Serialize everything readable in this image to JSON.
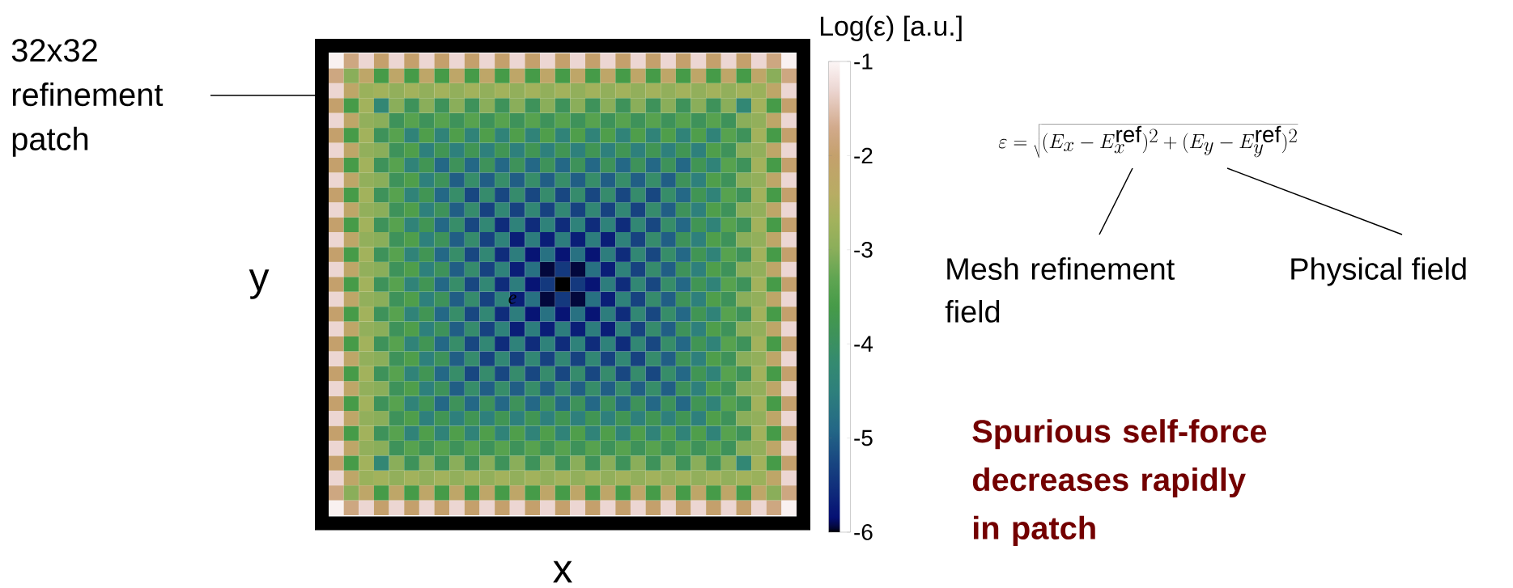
{
  "chart_data": {
    "type": "heatmap",
    "xlabel": "x",
    "ylabel": "y",
    "clabel": "Log(ε) [a.u.]",
    "categories": [
      null,
      null,
      null,
      null,
      null,
      null,
      null,
      null,
      null,
      null,
      null,
      null,
      null,
      null,
      null,
      null,
      null,
      null,
      null,
      null,
      null,
      null,
      null,
      null,
      null,
      null,
      null,
      null,
      null,
      null,
      null
    ],
    "y_categories": [
      null,
      null,
      null,
      null,
      null,
      null,
      null,
      null,
      null,
      null,
      null,
      null,
      null,
      null,
      null,
      null,
      null,
      null,
      null,
      null,
      null,
      null,
      null,
      null,
      null,
      null,
      null,
      null,
      null,
      null,
      null
    ],
    "clim": [
      -6,
      -1
    ],
    "cticks": [
      -1,
      -2,
      -3,
      -4,
      -5,
      -6
    ],
    "annotations": [
      "32x32 refinement patch",
      "\\varepsilon = \\sqrt{(E_x - E_x^{\\mathrm{ref}})^2 + (E_y - E_y^{\\mathrm{ref}})^2}",
      "Mesh refinement field",
      "Physical field",
      "Spurious self-force decreases rapidly in patch",
      "e"
    ],
    "cells": [
      [
        -1.05,
        -1.8,
        -1.3,
        -2,
        -1.3,
        -2,
        -1.3,
        -2,
        -1.3,
        -2,
        -1.3,
        -2,
        -1.3,
        -2,
        -1.3,
        -2,
        -1.3,
        -2,
        -1.3,
        -2,
        -1.3,
        -2,
        -1.3,
        -2,
        -1.3,
        -2,
        -1.3,
        -2,
        -1.3,
        -1.8,
        -1.05
      ],
      [
        -1.8,
        -3,
        -2.2,
        -3.6,
        -2.2,
        -3.6,
        -2.2,
        -3.6,
        -2.2,
        -3.6,
        -2.2,
        -3.6,
        -2.2,
        -3.6,
        -2.2,
        -3.6,
        -2.2,
        -3.6,
        -2.2,
        -3.6,
        -2.2,
        -3.6,
        -2.2,
        -3.6,
        -2.2,
        -3.6,
        -2.2,
        -3.6,
        -2.2,
        -3,
        -1.8
      ],
      [
        -1.3,
        -2.2,
        -2.8,
        -2.7,
        -2.9,
        -2.7,
        -2.9,
        -2.7,
        -2.9,
        -2.7,
        -2.9,
        -2.7,
        -2.9,
        -2.7,
        -2.9,
        -2.7,
        -2.9,
        -2.7,
        -2.9,
        -2.7,
        -2.9,
        -2.7,
        -2.9,
        -2.7,
        -2.9,
        -2.7,
        -2.9,
        -2.7,
        -2.8,
        -2.2,
        -1.3
      ],
      [
        -2,
        -3.6,
        -2.7,
        -4.3,
        -3,
        -3.9,
        -3,
        -3.9,
        -3,
        -3.9,
        -3,
        -3.9,
        -3,
        -3.9,
        -3,
        -3.9,
        -3,
        -3.9,
        -3,
        -3.9,
        -3,
        -3.9,
        -3,
        -3.9,
        -3,
        -3.9,
        -3,
        -4.3,
        -2.7,
        -3.6,
        -2
      ],
      [
        -1.3,
        -2.2,
        -2.9,
        -3,
        -3.9,
        -3.4,
        -3.9,
        -3.4,
        -3.9,
        -3.4,
        -3.9,
        -3.4,
        -3.9,
        -3.4,
        -3.9,
        -3.4,
        -3.9,
        -3.4,
        -3.9,
        -3.4,
        -3.9,
        -3.4,
        -3.9,
        -3.4,
        -3.9,
        -3.4,
        -3.9,
        -3,
        -2.9,
        -2.2,
        -1.3
      ],
      [
        -2,
        -3.6,
        -2.7,
        -3.9,
        -3.4,
        -4.4,
        -3.5,
        -4.4,
        -3.5,
        -4.4,
        -3.5,
        -4.4,
        -3.5,
        -4.4,
        -3.5,
        -4.4,
        -3.5,
        -4.4,
        -3.5,
        -4.4,
        -3.5,
        -4.4,
        -3.5,
        -4.4,
        -3.5,
        -4.4,
        -3.4,
        -3.9,
        -2.7,
        -3.6,
        -2
      ],
      [
        -1.3,
        -2.2,
        -2.9,
        -3,
        -3.9,
        -3.5,
        -4.5,
        -3.8,
        -4.5,
        -3.8,
        -4.5,
        -3.8,
        -4.5,
        -3.8,
        -4.5,
        -3.8,
        -4.5,
        -3.8,
        -4.5,
        -3.8,
        -4.5,
        -3.8,
        -4.5,
        -3.8,
        -4.5,
        -3.5,
        -3.9,
        -3,
        -2.9,
        -2.2,
        -1.3
      ],
      [
        -2,
        -3.6,
        -2.7,
        -3.9,
        -3.4,
        -4.4,
        -3.8,
        -4.9,
        -3.9,
        -4.9,
        -3.9,
        -4.9,
        -3.9,
        -4.9,
        -3.9,
        -4.9,
        -3.9,
        -4.9,
        -3.9,
        -4.9,
        -3.9,
        -4.9,
        -3.9,
        -4.9,
        -3.8,
        -4.4,
        -3.4,
        -3.9,
        -2.7,
        -3.6,
        -2
      ],
      [
        -1.3,
        -2.2,
        -2.9,
        -3,
        -3.9,
        -3.5,
        -4.5,
        -3.9,
        -5,
        -4.1,
        -5,
        -4.1,
        -5,
        -4.1,
        -5,
        -4.1,
        -5,
        -4.1,
        -5,
        -4.1,
        -5,
        -4.1,
        -5,
        -3.9,
        -4.5,
        -3.5,
        -3.9,
        -3,
        -2.9,
        -2.2,
        -1.3
      ],
      [
        -2,
        -3.6,
        -2.7,
        -3.9,
        -3.4,
        -4.4,
        -3.8,
        -4.9,
        -4.1,
        -5.25,
        -4.15,
        -5.25,
        -4.15,
        -5.25,
        -4.15,
        -5.25,
        -4.15,
        -5.25,
        -4.15,
        -5.25,
        -4.15,
        -5.25,
        -4.1,
        -4.9,
        -3.8,
        -4.4,
        -3.4,
        -3.9,
        -2.7,
        -3.6,
        -2
      ],
      [
        -1.3,
        -2.2,
        -2.9,
        -3,
        -3.9,
        -3.5,
        -4.5,
        -3.9,
        -5,
        -4.15,
        -5.3,
        -4.3,
        -5.3,
        -4.3,
        -5.3,
        -4.3,
        -5.3,
        -4.3,
        -5.3,
        -4.3,
        -5.3,
        -4.15,
        -5,
        -3.9,
        -4.5,
        -3.5,
        -3.9,
        -3,
        -2.9,
        -2.2,
        -1.3
      ],
      [
        -2,
        -3.6,
        -2.7,
        -3.9,
        -3.4,
        -4.4,
        -3.8,
        -4.9,
        -4.1,
        -5.25,
        -4.3,
        -5.55,
        -4.45,
        -5.55,
        -4.45,
        -5.55,
        -4.45,
        -5.55,
        -4.45,
        -5.55,
        -4.3,
        -5.25,
        -4.1,
        -4.9,
        -3.8,
        -4.4,
        -3.4,
        -3.9,
        -2.7,
        -3.6,
        -2
      ],
      [
        -1.3,
        -2.2,
        -2.9,
        -3,
        -3.9,
        -3.5,
        -4.5,
        -3.9,
        -5,
        -4.15,
        -5.3,
        -4.45,
        -5.7,
        -4.55,
        -5.7,
        -4.55,
        -5.7,
        -4.55,
        -5.7,
        -4.45,
        -5.3,
        -4.15,
        -5,
        -3.9,
        -4.5,
        -3.5,
        -3.9,
        -3,
        -2.9,
        -2.2,
        -1.3
      ],
      [
        -2,
        -3.6,
        -2.7,
        -3.9,
        -3.4,
        -4.4,
        -3.8,
        -4.9,
        -4.1,
        -5.25,
        -4.3,
        -5.55,
        -4.55,
        -5.8,
        -4.75,
        -5.8,
        -4.75,
        -5.8,
        -4.55,
        -5.55,
        -4.3,
        -5.25,
        -4.1,
        -4.9,
        -3.8,
        -4.4,
        -3.4,
        -3.9,
        -2.7,
        -3.6,
        -2
      ],
      [
        -1.3,
        -2.2,
        -2.9,
        -3,
        -3.9,
        -3.5,
        -4.5,
        -3.9,
        -5,
        -4.15,
        -5.3,
        -4.45,
        -5.7,
        -4.75,
        -5.95,
        -5.4,
        -5.95,
        -4.75,
        -5.7,
        -4.45,
        -5.3,
        -4.15,
        -5,
        -3.9,
        -4.5,
        -3.5,
        -3.9,
        -3,
        -2.9,
        -2.2,
        -1.3
      ],
      [
        -2,
        -3.6,
        -2.7,
        -3.9,
        -3.4,
        -4.4,
        -3.8,
        -4.9,
        -4.1,
        -5.25,
        -4.3,
        -5.55,
        -4.55,
        -5.8,
        -5.4,
        -6,
        -5.4,
        -5.8,
        -4.55,
        -5.55,
        -4.3,
        -5.25,
        -4.1,
        -4.9,
        -3.8,
        -4.4,
        -3.4,
        -3.9,
        -2.7,
        -3.6,
        -2
      ],
      [
        -1.3,
        -2.2,
        -2.9,
        -3,
        -3.9,
        -3.5,
        -4.5,
        -3.9,
        -5,
        -4.15,
        -5.3,
        -4.45,
        -5.7,
        -4.75,
        -5.95,
        -5.4,
        -5.95,
        -4.75,
        -5.7,
        -4.45,
        -5.3,
        -4.15,
        -5,
        -3.9,
        -4.5,
        -3.5,
        -3.9,
        -3,
        -2.9,
        -2.2,
        -1.3
      ],
      [
        -2,
        -3.6,
        -2.7,
        -3.9,
        -3.4,
        -4.4,
        -3.8,
        -4.9,
        -4.1,
        -5.25,
        -4.3,
        -5.55,
        -4.55,
        -5.8,
        -4.75,
        -5.8,
        -4.75,
        -5.8,
        -4.55,
        -5.55,
        -4.3,
        -5.25,
        -4.1,
        -4.9,
        -3.8,
        -4.4,
        -3.4,
        -3.9,
        -2.7,
        -3.6,
        -2
      ],
      [
        -1.3,
        -2.2,
        -2.9,
        -3,
        -3.9,
        -3.5,
        -4.5,
        -3.9,
        -5,
        -4.15,
        -5.3,
        -4.45,
        -5.7,
        -4.55,
        -5.7,
        -4.55,
        -5.7,
        -4.55,
        -5.7,
        -4.45,
        -5.3,
        -4.15,
        -5,
        -3.9,
        -4.5,
        -3.5,
        -3.9,
        -3,
        -2.9,
        -2.2,
        -1.3
      ],
      [
        -2,
        -3.6,
        -2.7,
        -3.9,
        -3.4,
        -4.4,
        -3.8,
        -4.9,
        -4.1,
        -5.25,
        -4.3,
        -5.55,
        -4.45,
        -5.55,
        -4.45,
        -5.55,
        -4.45,
        -5.55,
        -4.45,
        -5.55,
        -4.3,
        -5.25,
        -4.1,
        -4.9,
        -3.8,
        -4.4,
        -3.4,
        -3.9,
        -2.7,
        -3.6,
        -2
      ],
      [
        -1.3,
        -2.2,
        -2.9,
        -3,
        -3.9,
        -3.5,
        -4.5,
        -3.9,
        -5,
        -4.15,
        -5.3,
        -4.3,
        -5.3,
        -4.3,
        -5.3,
        -4.3,
        -5.3,
        -4.3,
        -5.3,
        -4.3,
        -5.3,
        -4.15,
        -5,
        -3.9,
        -4.5,
        -3.5,
        -3.9,
        -3,
        -2.9,
        -2.2,
        -1.3
      ],
      [
        -2,
        -3.6,
        -2.7,
        -3.9,
        -3.4,
        -4.4,
        -3.8,
        -4.9,
        -4.1,
        -5.25,
        -4.15,
        -5.25,
        -4.15,
        -5.25,
        -4.15,
        -5.25,
        -4.15,
        -5.25,
        -4.15,
        -5.25,
        -4.15,
        -5.25,
        -4.1,
        -4.9,
        -3.8,
        -4.4,
        -3.4,
        -3.9,
        -2.7,
        -3.6,
        -2
      ],
      [
        -1.3,
        -2.2,
        -2.9,
        -3,
        -3.9,
        -3.5,
        -4.5,
        -3.9,
        -5,
        -4.1,
        -5,
        -4.1,
        -5,
        -4.1,
        -5,
        -4.1,
        -5,
        -4.1,
        -5,
        -4.1,
        -5,
        -4.1,
        -5,
        -3.9,
        -4.5,
        -3.5,
        -3.9,
        -3,
        -2.9,
        -2.2,
        -1.3
      ],
      [
        -2,
        -3.6,
        -2.7,
        -3.9,
        -3.4,
        -4.4,
        -3.8,
        -4.9,
        -3.9,
        -4.9,
        -3.9,
        -4.9,
        -3.9,
        -4.9,
        -3.9,
        -4.9,
        -3.9,
        -4.9,
        -3.9,
        -4.9,
        -3.9,
        -4.9,
        -3.9,
        -4.9,
        -3.8,
        -4.4,
        -3.4,
        -3.9,
        -2.7,
        -3.6,
        -2
      ],
      [
        -1.3,
        -2.2,
        -2.9,
        -3,
        -3.9,
        -3.5,
        -4.5,
        -3.8,
        -4.5,
        -3.8,
        -4.5,
        -3.8,
        -4.5,
        -3.8,
        -4.5,
        -3.8,
        -4.5,
        -3.8,
        -4.5,
        -3.8,
        -4.5,
        -3.8,
        -4.5,
        -3.8,
        -4.5,
        -3.5,
        -3.9,
        -3,
        -2.9,
        -2.2,
        -1.3
      ],
      [
        -2,
        -3.6,
        -2.7,
        -3.9,
        -3.4,
        -4.4,
        -3.5,
        -4.4,
        -3.5,
        -4.4,
        -3.5,
        -4.4,
        -3.5,
        -4.4,
        -3.5,
        -4.4,
        -3.5,
        -4.4,
        -3.5,
        -4.4,
        -3.5,
        -4.4,
        -3.5,
        -4.4,
        -3.5,
        -4.4,
        -3.4,
        -3.9,
        -2.7,
        -3.6,
        -2
      ],
      [
        -1.3,
        -2.2,
        -2.9,
        -3,
        -3.9,
        -3.4,
        -3.9,
        -3.4,
        -3.9,
        -3.4,
        -3.9,
        -3.4,
        -3.9,
        -3.4,
        -3.9,
        -3.4,
        -3.9,
        -3.4,
        -3.9,
        -3.4,
        -3.9,
        -3.4,
        -3.9,
        -3.4,
        -3.9,
        -3.4,
        -3.9,
        -3,
        -2.9,
        -2.2,
        -1.3
      ],
      [
        -2,
        -3.6,
        -2.7,
        -4.3,
        -3,
        -3.9,
        -3,
        -3.9,
        -3,
        -3.9,
        -3,
        -3.9,
        -3,
        -3.9,
        -3,
        -3.9,
        -3,
        -3.9,
        -3,
        -3.9,
        -3,
        -3.9,
        -3,
        -3.9,
        -3,
        -3.9,
        -3,
        -4.3,
        -2.7,
        -3.6,
        -2
      ],
      [
        -1.3,
        -2.2,
        -2.8,
        -2.7,
        -2.9,
        -2.7,
        -2.9,
        -2.7,
        -2.9,
        -2.7,
        -2.9,
        -2.7,
        -2.9,
        -2.7,
        -2.9,
        -2.7,
        -2.9,
        -2.7,
        -2.9,
        -2.7,
        -2.9,
        -2.7,
        -2.9,
        -2.7,
        -2.9,
        -2.7,
        -2.9,
        -2.7,
        -2.8,
        -2.2,
        -1.3
      ],
      [
        -1.8,
        -3,
        -2.2,
        -3.6,
        -2.2,
        -3.6,
        -2.2,
        -3.6,
        -2.2,
        -3.6,
        -2.2,
        -3.6,
        -2.2,
        -3.6,
        -2.2,
        -3.6,
        -2.2,
        -3.6,
        -2.2,
        -3.6,
        -2.2,
        -3.6,
        -2.2,
        -3.6,
        -2.2,
        -3.6,
        -2.2,
        -3.6,
        -2.2,
        -3,
        -1.8
      ],
      [
        -1.05,
        -1.8,
        -1.3,
        -2,
        -1.3,
        -2,
        -1.3,
        -2,
        -1.3,
        -2,
        -1.3,
        -2,
        -1.3,
        -2,
        -1.3,
        -2,
        -1.3,
        -2,
        -1.3,
        -2,
        -1.3,
        -2,
        -1.3,
        -2,
        -1.3,
        -2,
        -1.3,
        -2,
        -1.3,
        -1.8,
        -1.05
      ]
    ]
  }
}
